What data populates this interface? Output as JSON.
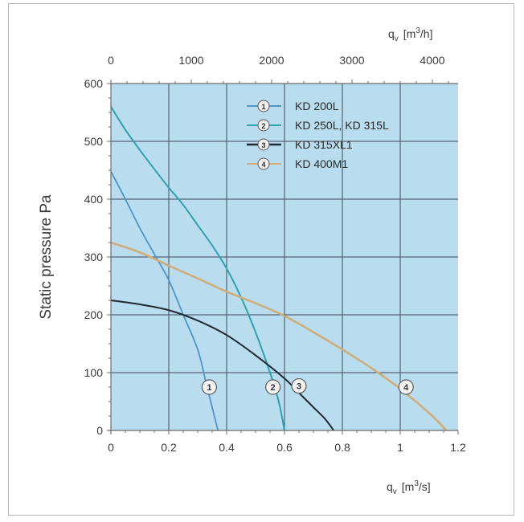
{
  "chart_data": {
    "type": "line",
    "ylabel": "Static pressure Pa",
    "xlabel_bottom": {
      "main": "q",
      "sub": "v",
      "unit": "[m",
      "sup": "3",
      "tail": "/s]"
    },
    "xlabel_top": {
      "main": "q",
      "sub": "v",
      "unit": "[m",
      "sup": "3",
      "tail": "/h]"
    },
    "xlim": [
      0,
      1.2
    ],
    "ylim": [
      0,
      600
    ],
    "x_ticks": [
      "0",
      "0.2",
      "0.4",
      "0.6",
      "0.8",
      "1",
      "1.2"
    ],
    "y_ticks": [
      "0",
      "100",
      "200",
      "300",
      "400",
      "500",
      "600"
    ],
    "x_top_ticks": [
      "0",
      "1000",
      "2000",
      "3000",
      "4000"
    ],
    "x_top_units_per_m3s": 3600,
    "grid": true,
    "legend_position": "top-right",
    "colors": {
      "plot_background": "#b9dcee",
      "grid": "#3d4b5a",
      "series1": "#4e96c8",
      "series2": "#2ea3ad",
      "series3": "#1f2936",
      "series4": "#cfad7c"
    },
    "series": [
      {
        "name": "KD 200L",
        "marker": "1",
        "marker_at": {
          "x": 0.34,
          "y": 75
        },
        "x": [
          0,
          0.05,
          0.1,
          0.15,
          0.2,
          0.25,
          0.3,
          0.33,
          0.35,
          0.37
        ],
        "y": [
          448,
          400,
          350,
          305,
          260,
          200,
          140,
          80,
          40,
          0
        ]
      },
      {
        "name": "KD 250L, KD 315L",
        "marker": "2",
        "marker_at": {
          "x": 0.56,
          "y": 75
        },
        "x": [
          0,
          0.05,
          0.1,
          0.15,
          0.2,
          0.25,
          0.3,
          0.35,
          0.4,
          0.45,
          0.5,
          0.55,
          0.58,
          0.6
        ],
        "y": [
          560,
          520,
          485,
          452,
          420,
          390,
          355,
          320,
          280,
          230,
          170,
          100,
          50,
          0
        ]
      },
      {
        "name": "KD 315XL1",
        "marker": "3",
        "marker_at": {
          "x": 0.65,
          "y": 77
        },
        "x": [
          0,
          0.1,
          0.2,
          0.3,
          0.4,
          0.5,
          0.6,
          0.65,
          0.7,
          0.74,
          0.77
        ],
        "y": [
          225,
          218,
          208,
          190,
          165,
          130,
          90,
          65,
          40,
          20,
          0
        ]
      },
      {
        "name": "KD 400M1",
        "marker": "4",
        "marker_at": {
          "x": 1.02,
          "y": 75
        },
        "x": [
          0,
          0.1,
          0.2,
          0.3,
          0.4,
          0.5,
          0.6,
          0.7,
          0.8,
          0.9,
          1.0,
          1.1,
          1.16
        ],
        "y": [
          325,
          308,
          285,
          263,
          240,
          220,
          198,
          170,
          140,
          108,
          72,
          30,
          0
        ]
      }
    ]
  }
}
